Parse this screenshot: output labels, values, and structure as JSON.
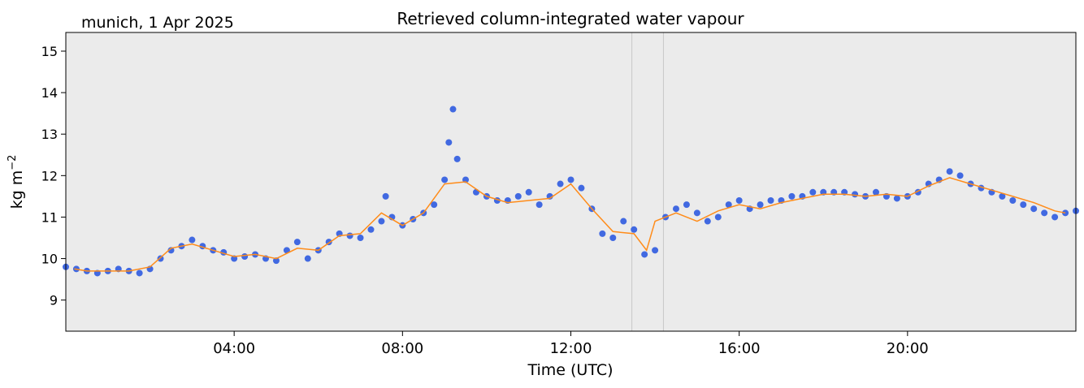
{
  "chart_data": {
    "type": "scatter",
    "title": "Retrieved column-integrated water vapour",
    "subtitle": "munich, 1 Apr 2025",
    "xlabel": "Time (UTC)",
    "ylabel": "kg m",
    "ylabel_exponent": "−2",
    "xlim": [
      0,
      24
    ],
    "ylim": [
      8.25,
      15.45
    ],
    "x_ticks": [
      {
        "value": 4,
        "label": "04:00"
      },
      {
        "value": 8,
        "label": "08:00"
      },
      {
        "value": 12,
        "label": "12:00"
      },
      {
        "value": 16,
        "label": "16:00"
      },
      {
        "value": 20,
        "label": "20:00"
      }
    ],
    "y_ticks": [
      {
        "value": 9,
        "label": "9"
      },
      {
        "value": 10,
        "label": "10"
      },
      {
        "value": 11,
        "label": "11"
      },
      {
        "value": 12,
        "label": "12"
      },
      {
        "value": 13,
        "label": "13"
      },
      {
        "value": 14,
        "label": "14"
      },
      {
        "value": 15,
        "label": "15"
      }
    ],
    "vertical_markers": [
      13.45,
      14.2
    ],
    "grid": false,
    "colors": {
      "plot_background": "#ebebeb",
      "points": "#4169e1",
      "smooth_line": "#ff8c1a",
      "marker_lines": "#c8c8c8"
    },
    "series": [
      {
        "kind": "points",
        "x": [
          0.0,
          0.25,
          0.5,
          0.75,
          1.0,
          1.25,
          1.5,
          1.75,
          2.0,
          2.25,
          2.5,
          2.75,
          3.0,
          3.25,
          3.5,
          3.75,
          4.0,
          4.25,
          4.5,
          4.75,
          5.0,
          5.25,
          5.5,
          5.75,
          6.0,
          6.25,
          6.5,
          6.75,
          7.0,
          7.25,
          7.5,
          7.6,
          7.75,
          8.0,
          8.25,
          8.5,
          8.75,
          9.0,
          9.1,
          9.2,
          9.3,
          9.5,
          9.75,
          10.0,
          10.25,
          10.5,
          10.75,
          11.0,
          11.25,
          11.5,
          11.75,
          12.0,
          12.25,
          12.5,
          12.75,
          13.0,
          13.25,
          13.5,
          13.75,
          14.0,
          14.25,
          14.5,
          14.75,
          15.0,
          15.25,
          15.5,
          15.75,
          16.0,
          16.25,
          16.5,
          16.75,
          17.0,
          17.25,
          17.5,
          17.75,
          18.0,
          18.25,
          18.5,
          18.75,
          19.0,
          19.25,
          19.5,
          19.75,
          20.0,
          20.25,
          20.5,
          20.75,
          21.0,
          21.25,
          21.5,
          21.75,
          22.0,
          22.25,
          22.5,
          22.75,
          23.0,
          23.25,
          23.5,
          23.75,
          24.0
        ],
        "y": [
          9.8,
          9.75,
          9.7,
          9.65,
          9.7,
          9.75,
          9.7,
          9.65,
          9.75,
          10.0,
          10.2,
          10.3,
          10.45,
          10.3,
          10.2,
          10.15,
          10.0,
          10.05,
          10.1,
          10.0,
          9.95,
          10.2,
          10.4,
          10.0,
          10.2,
          10.4,
          10.6,
          10.55,
          10.5,
          10.7,
          10.9,
          11.5,
          11.0,
          10.8,
          10.95,
          11.1,
          11.3,
          11.9,
          12.8,
          13.6,
          12.4,
          11.9,
          11.6,
          11.5,
          11.4,
          11.4,
          11.5,
          11.6,
          11.3,
          11.5,
          11.8,
          11.9,
          11.7,
          11.2,
          10.6,
          10.5,
          10.9,
          10.7,
          10.1,
          10.2,
          11.0,
          11.2,
          11.3,
          11.1,
          10.9,
          11.0,
          11.3,
          11.4,
          11.2,
          11.3,
          11.4,
          11.4,
          11.5,
          11.5,
          11.6,
          11.6,
          11.6,
          11.6,
          11.55,
          11.5,
          11.6,
          11.5,
          11.45,
          11.5,
          11.6,
          11.8,
          11.9,
          12.1,
          12.0,
          11.8,
          11.7,
          11.6,
          11.5,
          11.4,
          11.3,
          11.2,
          11.1,
          11.0,
          11.1,
          11.15
        ]
      },
      {
        "kind": "smoothed",
        "x": [
          0.2,
          0.5,
          1.0,
          1.5,
          2.0,
          2.5,
          3.0,
          3.5,
          4.0,
          4.5,
          5.0,
          5.5,
          6.0,
          6.5,
          7.0,
          7.5,
          8.0,
          8.5,
          9.0,
          9.5,
          10.0,
          10.5,
          11.0,
          11.5,
          12.0,
          12.5,
          13.0,
          13.5,
          13.8,
          14.0,
          14.5,
          15.0,
          15.5,
          16.0,
          16.5,
          17.0,
          17.5,
          18.0,
          18.5,
          19.0,
          19.5,
          20.0,
          20.5,
          21.0,
          21.5,
          22.0,
          22.5,
          23.0,
          23.5,
          23.75
        ],
        "y": [
          9.75,
          9.7,
          9.7,
          9.7,
          9.8,
          10.25,
          10.35,
          10.2,
          10.05,
          10.1,
          10.0,
          10.25,
          10.2,
          10.55,
          10.6,
          11.1,
          10.8,
          11.1,
          11.8,
          11.85,
          11.5,
          11.35,
          11.4,
          11.45,
          11.8,
          11.2,
          10.65,
          10.6,
          10.2,
          10.9,
          11.1,
          10.9,
          11.15,
          11.3,
          11.2,
          11.35,
          11.45,
          11.55,
          11.55,
          11.5,
          11.55,
          11.5,
          11.75,
          11.95,
          11.8,
          11.65,
          11.5,
          11.35,
          11.15,
          11.1
        ]
      }
    ]
  }
}
